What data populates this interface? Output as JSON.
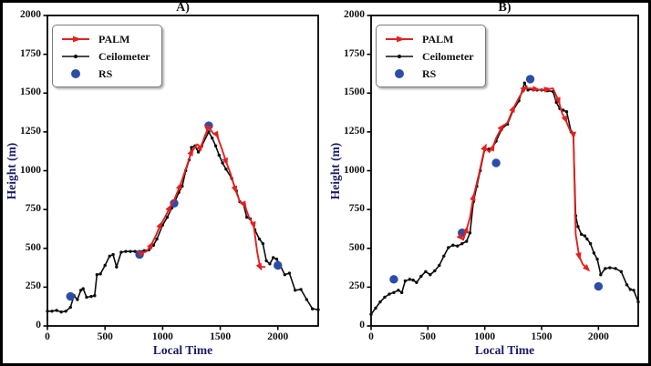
{
  "figure": {
    "background": "#ffffff",
    "border_color": "#000000"
  },
  "colors": {
    "palm": "#e2211f",
    "ceilometer": "#0d0d0d",
    "rs": "#2b4da6",
    "axis_label": "#1a1d66",
    "tick_label": "#111111",
    "spine": "#000000",
    "legend_border": "#7a7a7a"
  },
  "chart_data": [
    {
      "type": "line",
      "title": "A)",
      "xlabel": "Local Time",
      "ylabel": "Height (m)",
      "xlim": [
        0,
        2350
      ],
      "ylim": [
        0,
        2000
      ],
      "xticks": [
        0,
        500,
        1000,
        1500,
        2000
      ],
      "yticks": [
        0,
        250,
        500,
        750,
        1000,
        1250,
        1500,
        1750,
        2000
      ],
      "grid": false,
      "legend_position": "upper-left",
      "legend_entries": [
        "PALM",
        "Ceilometer",
        "RS"
      ],
      "series": [
        {
          "name": "Ceilometer",
          "color_key": "ceilometer",
          "marker": "dot",
          "marker_every": 1,
          "line": true,
          "points": [
            [
              0,
              95
            ],
            [
              40,
              95
            ],
            [
              80,
              100
            ],
            [
              120,
              90
            ],
            [
              160,
              95
            ],
            [
              200,
              120
            ],
            [
              230,
              195
            ],
            [
              260,
              170
            ],
            [
              290,
              230
            ],
            [
              310,
              240
            ],
            [
              340,
              185
            ],
            [
              380,
              190
            ],
            [
              410,
              195
            ],
            [
              430,
              330
            ],
            [
              460,
              335
            ],
            [
              500,
              390
            ],
            [
              540,
              450
            ],
            [
              570,
              460
            ],
            [
              600,
              380
            ],
            [
              640,
              475
            ],
            [
              680,
              480
            ],
            [
              720,
              480
            ],
            [
              760,
              480
            ],
            [
              800,
              480
            ],
            [
              840,
              485
            ],
            [
              880,
              490
            ],
            [
              920,
              520
            ],
            [
              950,
              560
            ],
            [
              1000,
              650
            ],
            [
              1040,
              700
            ],
            [
              1080,
              760
            ],
            [
              1100,
              790
            ],
            [
              1140,
              860
            ],
            [
              1170,
              900
            ],
            [
              1200,
              1000
            ],
            [
              1230,
              1070
            ],
            [
              1250,
              1150
            ],
            [
              1280,
              1160
            ],
            [
              1310,
              1120
            ],
            [
              1340,
              1160
            ],
            [
              1400,
              1250
            ],
            [
              1430,
              1210
            ],
            [
              1460,
              1160
            ],
            [
              1490,
              1100
            ],
            [
              1520,
              1050
            ],
            [
              1550,
              1010
            ],
            [
              1600,
              950
            ],
            [
              1640,
              870
            ],
            [
              1670,
              800
            ],
            [
              1700,
              790
            ],
            [
              1730,
              700
            ],
            [
              1760,
              690
            ],
            [
              1800,
              620
            ],
            [
              1840,
              560
            ],
            [
              1870,
              530
            ],
            [
              1900,
              420
            ],
            [
              1930,
              400
            ],
            [
              1960,
              440
            ],
            [
              1990,
              430
            ],
            [
              2020,
              390
            ],
            [
              2060,
              330
            ],
            [
              2100,
              340
            ],
            [
              2150,
              230
            ],
            [
              2200,
              235
            ],
            [
              2250,
              170
            ],
            [
              2300,
              110
            ],
            [
              2350,
              105
            ]
          ]
        },
        {
          "name": "RS",
          "color_key": "rs",
          "marker": "circle",
          "marker_every": 1,
          "line": false,
          "points": [
            [
              200,
              190
            ],
            [
              800,
              460
            ],
            [
              1100,
              790
            ],
            [
              1400,
              1290
            ],
            [
              2000,
              390
            ]
          ]
        },
        {
          "name": "PALM",
          "color_key": "palm",
          "marker": "arrow",
          "marker_every": 2,
          "line": true,
          "points": [
            [
              820,
              470
            ],
            [
              860,
              480
            ],
            [
              900,
              520
            ],
            [
              940,
              580
            ],
            [
              980,
              650
            ],
            [
              1020,
              700
            ],
            [
              1060,
              760
            ],
            [
              1100,
              810
            ],
            [
              1150,
              900
            ],
            [
              1200,
              1010
            ],
            [
              1250,
              1120
            ],
            [
              1300,
              1170
            ],
            [
              1330,
              1150
            ],
            [
              1370,
              1230
            ],
            [
              1400,
              1280
            ],
            [
              1440,
              1240
            ],
            [
              1470,
              1230
            ],
            [
              1510,
              1150
            ],
            [
              1550,
              1060
            ],
            [
              1590,
              980
            ],
            [
              1630,
              880
            ],
            [
              1670,
              800
            ],
            [
              1710,
              780
            ],
            [
              1750,
              700
            ],
            [
              1790,
              650
            ],
            [
              1820,
              480
            ],
            [
              1845,
              380
            ],
            [
              1885,
              380
            ]
          ]
        }
      ]
    },
    {
      "type": "line",
      "title": "B)",
      "xlabel": "Local Time",
      "ylabel": "Height (m)",
      "xlim": [
        0,
        2350
      ],
      "ylim": [
        0,
        2000
      ],
      "xticks": [
        0,
        500,
        1000,
        1500,
        2000
      ],
      "yticks": [
        0,
        250,
        500,
        750,
        1000,
        1250,
        1500,
        1750,
        2000
      ],
      "grid": false,
      "legend_position": "upper-left",
      "legend_entries": [
        "PALM",
        "Ceilometer",
        "RS"
      ],
      "series": [
        {
          "name": "Ceilometer",
          "color_key": "ceilometer",
          "marker": "dot",
          "marker_every": 1,
          "line": true,
          "points": [
            [
              0,
              75
            ],
            [
              40,
              115
            ],
            [
              80,
              155
            ],
            [
              120,
              185
            ],
            [
              160,
              205
            ],
            [
              200,
              215
            ],
            [
              240,
              230
            ],
            [
              270,
              215
            ],
            [
              300,
              290
            ],
            [
              340,
              300
            ],
            [
              370,
              295
            ],
            [
              400,
              280
            ],
            [
              440,
              320
            ],
            [
              480,
              350
            ],
            [
              520,
              330
            ],
            [
              560,
              355
            ],
            [
              600,
              390
            ],
            [
              640,
              450
            ],
            [
              680,
              505
            ],
            [
              720,
              520
            ],
            [
              760,
              515
            ],
            [
              800,
              530
            ],
            [
              840,
              545
            ],
            [
              870,
              600
            ],
            [
              900,
              800
            ],
            [
              930,
              900
            ],
            [
              960,
              1000
            ],
            [
              1000,
              1140
            ],
            [
              1040,
              1140
            ],
            [
              1070,
              1150
            ],
            [
              1100,
              1190
            ],
            [
              1150,
              1270
            ],
            [
              1200,
              1300
            ],
            [
              1250,
              1390
            ],
            [
              1300,
              1450
            ],
            [
              1350,
              1565
            ],
            [
              1380,
              1520
            ],
            [
              1420,
              1525
            ],
            [
              1460,
              1520
            ],
            [
              1500,
              1520
            ],
            [
              1550,
              1515
            ],
            [
              1600,
              1510
            ],
            [
              1630,
              1440
            ],
            [
              1660,
              1400
            ],
            [
              1690,
              1390
            ],
            [
              1720,
              1380
            ],
            [
              1760,
              1250
            ],
            [
              1780,
              1230
            ],
            [
              1800,
              710
            ],
            [
              1820,
              640
            ],
            [
              1850,
              590
            ],
            [
              1880,
              580
            ],
            [
              1900,
              560
            ],
            [
              1930,
              530
            ],
            [
              1960,
              470
            ],
            [
              1990,
              430
            ],
            [
              2020,
              330
            ],
            [
              2060,
              370
            ],
            [
              2100,
              375
            ],
            [
              2150,
              370
            ],
            [
              2200,
              350
            ],
            [
              2250,
              265
            ],
            [
              2280,
              235
            ],
            [
              2310,
              230
            ],
            [
              2350,
              155
            ]
          ]
        },
        {
          "name": "RS",
          "color_key": "rs",
          "marker": "circle",
          "marker_every": 1,
          "line": false,
          "points": [
            [
              200,
              300
            ],
            [
              800,
              600
            ],
            [
              1100,
              1050
            ],
            [
              1400,
              1590
            ],
            [
              2000,
              255
            ]
          ]
        },
        {
          "name": "PALM",
          "color_key": "palm",
          "marker": "arrow",
          "marker_every": 2,
          "line": true,
          "points": [
            [
              790,
              570
            ],
            [
              810,
              555
            ],
            [
              840,
              620
            ],
            [
              870,
              700
            ],
            [
              900,
              830
            ],
            [
              950,
              980
            ],
            [
              1000,
              1150
            ],
            [
              1040,
              1120
            ],
            [
              1070,
              1150
            ],
            [
              1100,
              1210
            ],
            [
              1150,
              1280
            ],
            [
              1200,
              1310
            ],
            [
              1250,
              1400
            ],
            [
              1300,
              1470
            ],
            [
              1350,
              1530
            ],
            [
              1400,
              1530
            ],
            [
              1450,
              1525
            ],
            [
              1500,
              1520
            ],
            [
              1550,
              1525
            ],
            [
              1600,
              1530
            ],
            [
              1650,
              1450
            ],
            [
              1680,
              1370
            ],
            [
              1710,
              1330
            ],
            [
              1750,
              1260
            ],
            [
              1780,
              1230
            ],
            [
              1800,
              590
            ],
            [
              1830,
              450
            ],
            [
              1860,
              400
            ],
            [
              1900,
              370
            ]
          ]
        }
      ]
    }
  ]
}
